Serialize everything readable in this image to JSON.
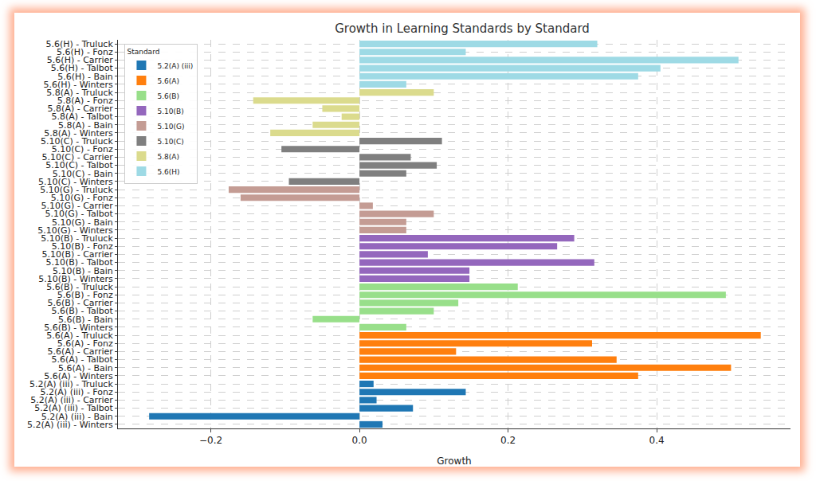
{
  "chart_data": {
    "type": "bar",
    "orientation": "horizontal",
    "title": "Growth in Learning Standards by Standard",
    "x_label": "Growth",
    "legend_title": "Standard",
    "legend": "upper left",
    "grid": true,
    "categories": [
      "5.6(H) - Truluck",
      "5.6(H) - Fonz",
      "5.6(H) - Carrier",
      "5.6(H) - Talbot",
      "5.6(H) - Bain",
      "5.6(H) - Winters",
      "5.8(A) - Truluck",
      "5.8(A) - Fonz",
      "5.8(A) - Carrier",
      "5.8(A) - Talbot",
      "5.8(A) - Bain",
      "5.8(A) - Winters",
      "5.10(C) - Truluck",
      "5.10(C) - Fonz",
      "5.10(C) - Carrier",
      "5.10(C) - Talbot",
      "5.10(C) - Bain",
      "5.10(C) - Winters",
      "5.10(G) - Truluck",
      "5.10(G) - Fonz",
      "5.10(G) - Carrier",
      "5.10(G) - Talbot",
      "5.10(G) - Bain",
      "5.10(G) - Winters",
      "5.10(B) - Truluck",
      "5.10(B) - Fonz",
      "5.10(B) - Carrier",
      "5.10(B) - Talbot",
      "5.10(B) - Bain",
      "5.10(B) - Winters",
      "5.6(B) - Truluck",
      "5.6(B) - Fonz",
      "5.6(B) - Carrier",
      "5.6(B) - Talbot",
      "5.6(B) - Bain",
      "5.6(B) - Winters",
      "5.6(A) - Truluck",
      "5.6(A) - Fonz",
      "5.6(A) - Carrier",
      "5.6(A) - Talbot",
      "5.6(A) - Bain",
      "5.6(A) - Winters",
      "5.2(A) (iii) - Truluck",
      "5.2(A) (iii) - Fonz",
      "5.2(A) (iii) - Carrier",
      "5.2(A) (iii) - Talbot",
      "5.2(A) (iii) - Bain",
      "5.2(A) (iii) - Winters"
    ],
    "series": [
      {
        "name": "5.2(A) (iii)",
        "color": "#1f77b4",
        "values": [
          null,
          null,
          null,
          null,
          null,
          null,
          null,
          null,
          null,
          null,
          null,
          null,
          null,
          null,
          null,
          null,
          null,
          null,
          null,
          null,
          null,
          null,
          null,
          null,
          null,
          null,
          null,
          null,
          null,
          null,
          null,
          null,
          null,
          null,
          null,
          null,
          null,
          null,
          null,
          null,
          null,
          null,
          0.019,
          0.143,
          0.023,
          0.072,
          -0.283,
          0.031
        ]
      },
      {
        "name": "5.6(A)",
        "color": "#ff7f0e",
        "values": [
          null,
          null,
          null,
          null,
          null,
          null,
          null,
          null,
          null,
          null,
          null,
          null,
          null,
          null,
          null,
          null,
          null,
          null,
          null,
          null,
          null,
          null,
          null,
          null,
          null,
          null,
          null,
          null,
          null,
          null,
          null,
          null,
          null,
          null,
          null,
          null,
          0.54,
          0.313,
          0.13,
          0.346,
          0.5,
          0.375,
          null,
          null,
          null,
          null,
          null,
          null
        ]
      },
      {
        "name": "5.6(B)",
        "color": "#98df8a",
        "values": [
          null,
          null,
          null,
          null,
          null,
          null,
          null,
          null,
          null,
          null,
          null,
          null,
          null,
          null,
          null,
          null,
          null,
          null,
          null,
          null,
          null,
          null,
          null,
          null,
          null,
          null,
          null,
          null,
          null,
          null,
          0.213,
          0.493,
          0.133,
          0.1,
          -0.063,
          0.063,
          null,
          null,
          null,
          null,
          null,
          null,
          null,
          null,
          null,
          null,
          null,
          null
        ]
      },
      {
        "name": "5.10(B)",
        "color": "#9467bd",
        "values": [
          null,
          null,
          null,
          null,
          null,
          null,
          null,
          null,
          null,
          null,
          null,
          null,
          null,
          null,
          null,
          null,
          null,
          null,
          null,
          null,
          null,
          null,
          null,
          null,
          0.289,
          0.266,
          0.092,
          0.316,
          0.148,
          0.148,
          null,
          null,
          null,
          null,
          null,
          null,
          null,
          null,
          null,
          null,
          null,
          null,
          null,
          null,
          null,
          null,
          null,
          null
        ]
      },
      {
        "name": "5.10(G)",
        "color": "#c49c94",
        "values": [
          null,
          null,
          null,
          null,
          null,
          null,
          null,
          null,
          null,
          null,
          null,
          null,
          null,
          null,
          null,
          null,
          null,
          null,
          -0.176,
          -0.16,
          0.018,
          0.1,
          0.063,
          0.063,
          null,
          null,
          null,
          null,
          null,
          null,
          null,
          null,
          null,
          null,
          null,
          null,
          null,
          null,
          null,
          null,
          null,
          null,
          null,
          null,
          null,
          null,
          null,
          null
        ]
      },
      {
        "name": "5.10(C)",
        "color": "#7f7f7f",
        "values": [
          null,
          null,
          null,
          null,
          null,
          null,
          null,
          null,
          null,
          null,
          null,
          null,
          0.111,
          -0.105,
          0.069,
          0.104,
          0.063,
          -0.095,
          null,
          null,
          null,
          null,
          null,
          null,
          null,
          null,
          null,
          null,
          null,
          null,
          null,
          null,
          null,
          null,
          null,
          null,
          null,
          null,
          null,
          null,
          null,
          null,
          null,
          null,
          null,
          null,
          null,
          null
        ]
      },
      {
        "name": "5.8(A)",
        "color": "#dbdb8d",
        "values": [
          null,
          null,
          null,
          null,
          null,
          null,
          0.1,
          -0.143,
          -0.05,
          -0.024,
          -0.063,
          -0.12,
          null,
          null,
          null,
          null,
          null,
          null,
          null,
          null,
          null,
          null,
          null,
          null,
          null,
          null,
          null,
          null,
          null,
          null,
          null,
          null,
          null,
          null,
          null,
          null,
          null,
          null,
          null,
          null,
          null,
          null,
          null,
          null,
          null,
          null,
          null,
          null
        ]
      },
      {
        "name": "5.6(H)",
        "color": "#9edae5",
        "values": [
          0.32,
          0.143,
          0.51,
          0.405,
          0.375,
          0.063,
          null,
          null,
          null,
          null,
          null,
          null,
          null,
          null,
          null,
          null,
          null,
          null,
          null,
          null,
          null,
          null,
          null,
          null,
          null,
          null,
          null,
          null,
          null,
          null,
          null,
          null,
          null,
          null,
          null,
          null,
          null,
          null,
          null,
          null,
          null,
          null,
          null,
          null,
          null,
          null,
          null,
          null
        ]
      }
    ],
    "xlim": [
      -0.325,
      0.58
    ],
    "xticks": [
      {
        "value": -0.2,
        "label": "−0.2"
      },
      {
        "value": 0,
        "label": "0.0"
      },
      0.2,
      0.4
    ]
  }
}
